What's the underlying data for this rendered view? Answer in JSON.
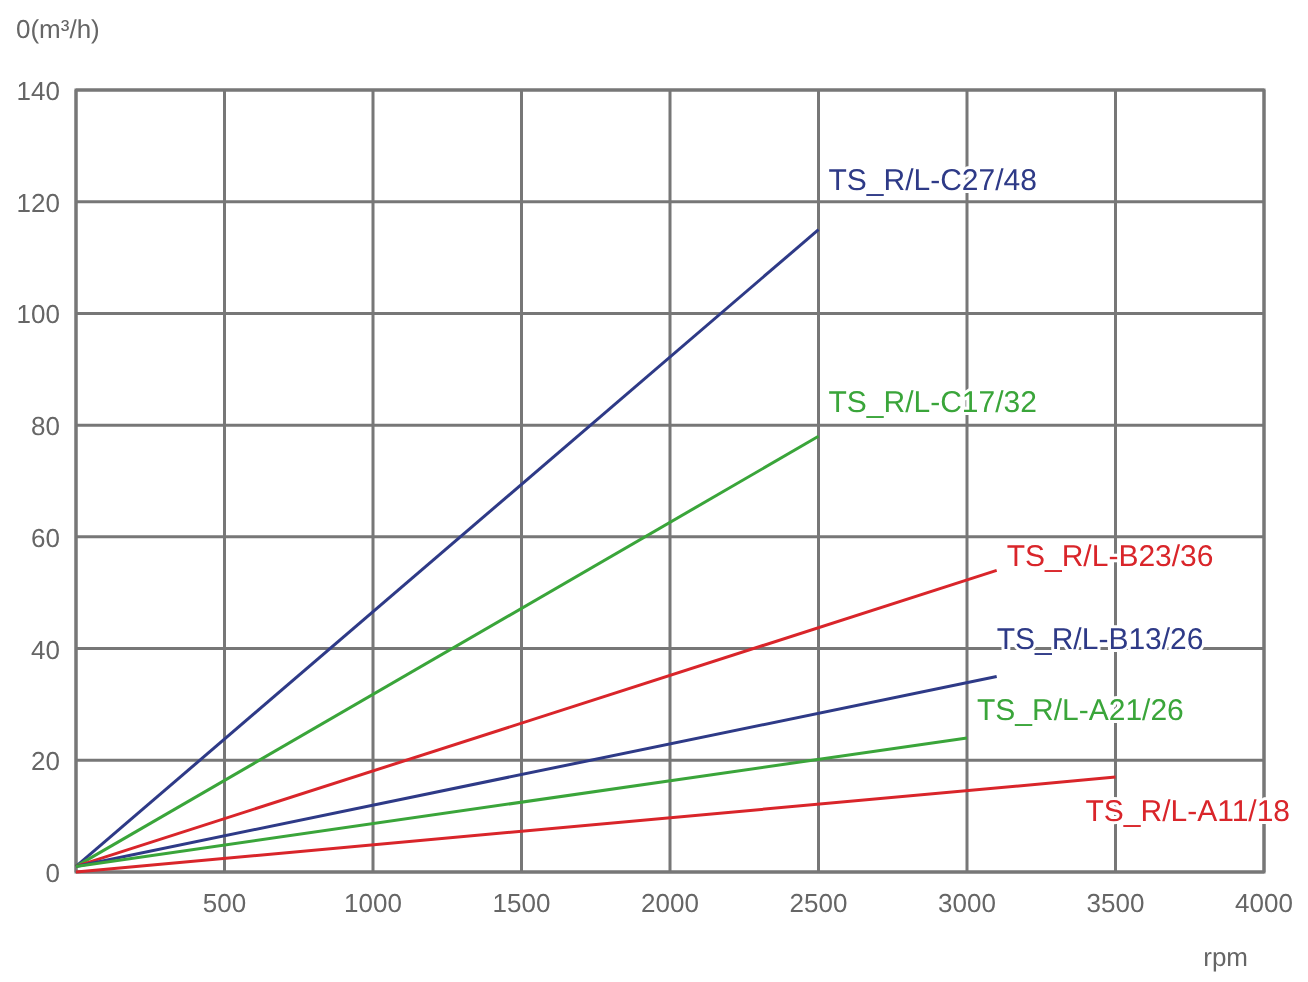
{
  "chart_data": {
    "type": "line",
    "ylabel": "0(m³/h)",
    "xlabel": "rpm",
    "xlim": [
      0,
      4000
    ],
    "ylim": [
      0,
      140
    ],
    "xticks": [
      {
        "value": 0,
        "label": null
      },
      500,
      1000,
      1500,
      2000,
      2500,
      3000,
      3500,
      4000
    ],
    "yticks": [
      0,
      20,
      40,
      60,
      80,
      100,
      120,
      140
    ],
    "grid": true,
    "marker": "none",
    "line_style": "solid",
    "series": [
      {
        "name": "TS_R/L-C27/48",
        "color": "#2e3a87",
        "x": [
          0,
          2500
        ],
        "values": [
          1,
          115
        ]
      },
      {
        "name": "TS_R/L-C17/32",
        "color": "#3aa53a",
        "x": [
          0,
          2500
        ],
        "values": [
          1,
          78
        ]
      },
      {
        "name": "TS_R/L-B23/36",
        "color": "#d9252a",
        "x": [
          0,
          3100
        ],
        "values": [
          1,
          54
        ]
      },
      {
        "name": "TS_R/L-B13/26",
        "color": "#2e3a87",
        "x": [
          0,
          3100
        ],
        "values": [
          1,
          35
        ]
      },
      {
        "name": "TS_R/L-A21/26",
        "color": "#3aa53a",
        "x": [
          0,
          3000
        ],
        "values": [
          1,
          24
        ]
      },
      {
        "name": "TS_R/L-A11/18",
        "color": "#d9252a",
        "x": [
          0,
          3500
        ],
        "values": [
          0,
          17
        ]
      }
    ]
  }
}
